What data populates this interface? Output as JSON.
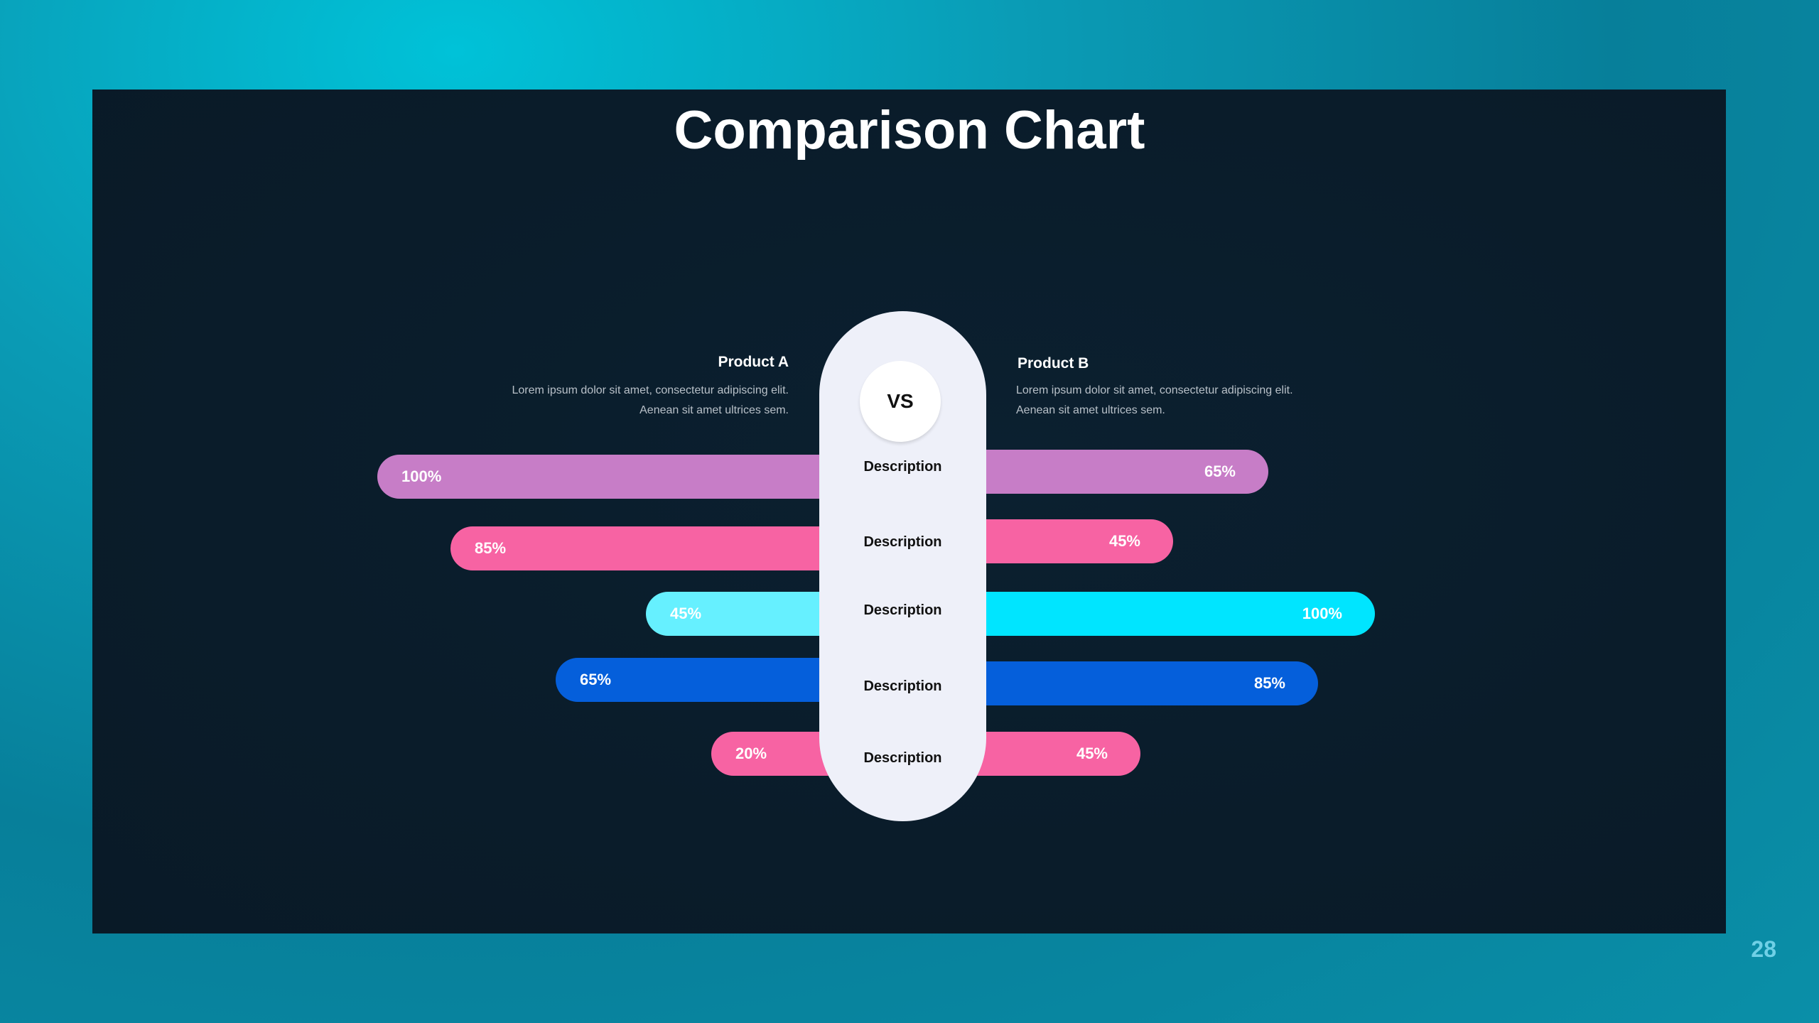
{
  "title": "Comparison Chart",
  "page_number": "28",
  "product_a": {
    "name": "Product A",
    "text": "Lorem ipsum dolor sit amet, consectetur adipiscing elit. Aenean sit amet ultrices sem."
  },
  "product_b": {
    "name": "Product B",
    "text": "Lorem ipsum dolor sit amet, consectetur adipiscing elit. Aenean sit amet ultrices sem."
  },
  "vs_label": "VS",
  "chart_data": {
    "type": "bar",
    "orientation": "horizontal-diverging",
    "categories": [
      "Description",
      "Description",
      "Description",
      "Description",
      "Description"
    ],
    "series": [
      {
        "name": "Product A",
        "values": [
          100,
          85,
          45,
          65,
          20
        ],
        "labels": [
          "100%",
          "85%",
          "45%",
          "65%",
          "20%"
        ]
      },
      {
        "name": "Product B",
        "values": [
          65,
          45,
          100,
          85,
          45
        ],
        "labels": [
          "65%",
          "45%",
          "100%",
          "85%",
          "45%"
        ]
      }
    ],
    "colors": [
      "#c77dc7",
      "#f763a3",
      "#66f0ff",
      "#055fdb",
      "#f763a3"
    ],
    "right_colors": [
      "#c77dc7",
      "#f763a3",
      "#00e5ff",
      "#055fdb",
      "#f763a3"
    ]
  }
}
